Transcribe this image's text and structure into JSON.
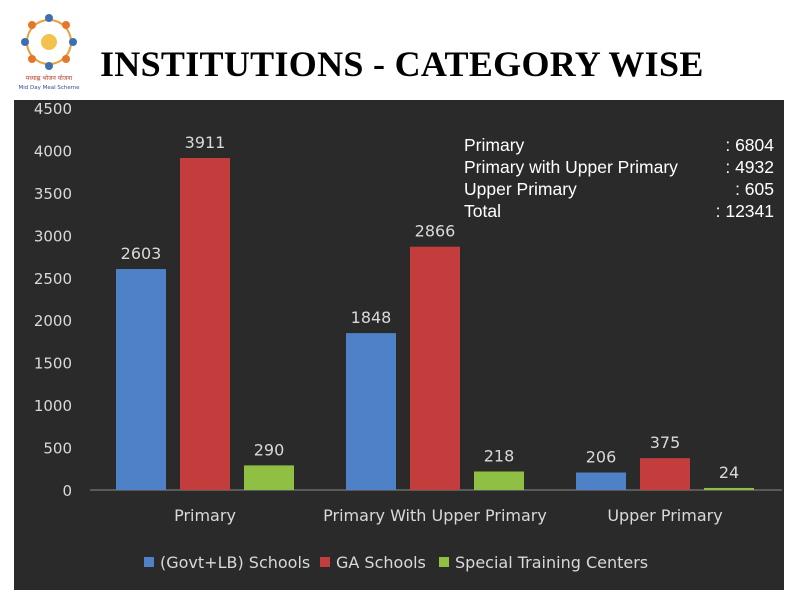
{
  "page": {
    "title": "INSTITUTIONS - CATEGORY WISE"
  },
  "logo": {
    "text_line1": "मध्याह्न भोजन योजना",
    "text_line2": "Mid Day Meal Scheme"
  },
  "summary": [
    {
      "label": "Primary",
      "value": ":  6804"
    },
    {
      "label": "Primary with Upper Primary",
      "value": ": 4932"
    },
    {
      "label": "Upper Primary",
      "value": ":   605"
    },
    {
      "label": "Total",
      "value": ": 12341"
    }
  ],
  "chart_data": {
    "type": "bar",
    "categories": [
      "Primary",
      "Primary With Upper Primary",
      "Upper Primary"
    ],
    "series": [
      {
        "name": "(Govt+LB) Schools",
        "values": [
          2603,
          1848,
          206
        ],
        "color": "#4f81c8"
      },
      {
        "name": "GA Schools",
        "values": [
          3911,
          2866,
          375
        ],
        "color": "#c43d3d"
      },
      {
        "name": "Special Training Centers",
        "values": [
          290,
          218,
          24
        ],
        "color": "#8fc043"
      }
    ],
    "ylim": [
      0,
      4500
    ],
    "yticks": [
      "0",
      "500",
      "1000",
      "1500",
      "2000",
      "2500",
      "3000",
      "3500",
      "4000",
      "4500"
    ],
    "grid": false,
    "legend_position": "bottom",
    "background": "#2a2a2a"
  }
}
